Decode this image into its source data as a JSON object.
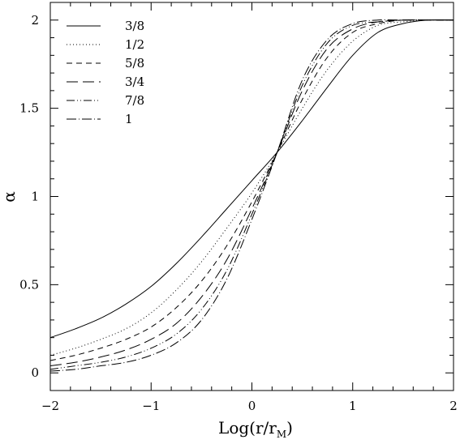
{
  "chart_data": {
    "type": "line",
    "xlabel": "Log(r/r",
    "xlabel_sub": "M",
    "xlabel_close": ")",
    "ylabel": "α",
    "xlim": [
      -2,
      2
    ],
    "ylim": [
      -0.1,
      2.1
    ],
    "x_ticks": [
      -2,
      -1,
      0,
      1,
      2
    ],
    "x_tick_labels": [
      "−2",
      "−1",
      "0",
      "1",
      "2"
    ],
    "y_ticks": [
      0,
      0.5,
      1,
      1.5,
      2
    ],
    "y_tick_labels": [
      "0",
      "0.5",
      "1",
      "1.5",
      "2"
    ],
    "legend_position": "top-left",
    "x": [
      -2,
      -1.75,
      -1.5,
      -1.25,
      -1,
      -0.75,
      -0.5,
      -0.25,
      0,
      0.25,
      0.5,
      0.75,
      1,
      1.25,
      1.5,
      1.75,
      2
    ],
    "series": [
      {
        "name": "3/8",
        "dash": "solid",
        "values": [
          0.2,
          0.25,
          0.31,
          0.39,
          0.49,
          0.62,
          0.77,
          0.93,
          1.09,
          1.25,
          1.43,
          1.62,
          1.8,
          1.93,
          1.98,
          2.0,
          2.0
        ]
      },
      {
        "name": "1/2",
        "dash": "dotted",
        "values": [
          0.1,
          0.14,
          0.19,
          0.25,
          0.34,
          0.47,
          0.63,
          0.82,
          1.02,
          1.25,
          1.5,
          1.72,
          1.88,
          1.97,
          1.99,
          2.0,
          2.0
        ]
      },
      {
        "name": "5/8",
        "dash": "short-dash",
        "values": [
          0.07,
          0.1,
          0.14,
          0.19,
          0.26,
          0.37,
          0.52,
          0.72,
          0.97,
          1.25,
          1.55,
          1.79,
          1.93,
          1.98,
          2.0,
          2.0,
          2.0
        ]
      },
      {
        "name": "3/4",
        "dash": "long-dash",
        "values": [
          0.04,
          0.06,
          0.09,
          0.13,
          0.19,
          0.28,
          0.43,
          0.64,
          0.93,
          1.25,
          1.6,
          1.84,
          1.95,
          1.99,
          2.0,
          2.0,
          2.0
        ]
      },
      {
        "name": "7/8",
        "dash": "dash-dot-dot",
        "values": [
          0.02,
          0.04,
          0.06,
          0.09,
          0.14,
          0.22,
          0.36,
          0.58,
          0.9,
          1.25,
          1.63,
          1.87,
          1.97,
          1.99,
          2.0,
          2.0,
          2.0
        ]
      },
      {
        "name": "1",
        "dash": "dash-dot",
        "values": [
          0.01,
          0.02,
          0.04,
          0.06,
          0.1,
          0.17,
          0.3,
          0.53,
          0.87,
          1.25,
          1.66,
          1.89,
          1.98,
          2.0,
          2.0,
          2.0,
          2.0
        ]
      }
    ]
  }
}
